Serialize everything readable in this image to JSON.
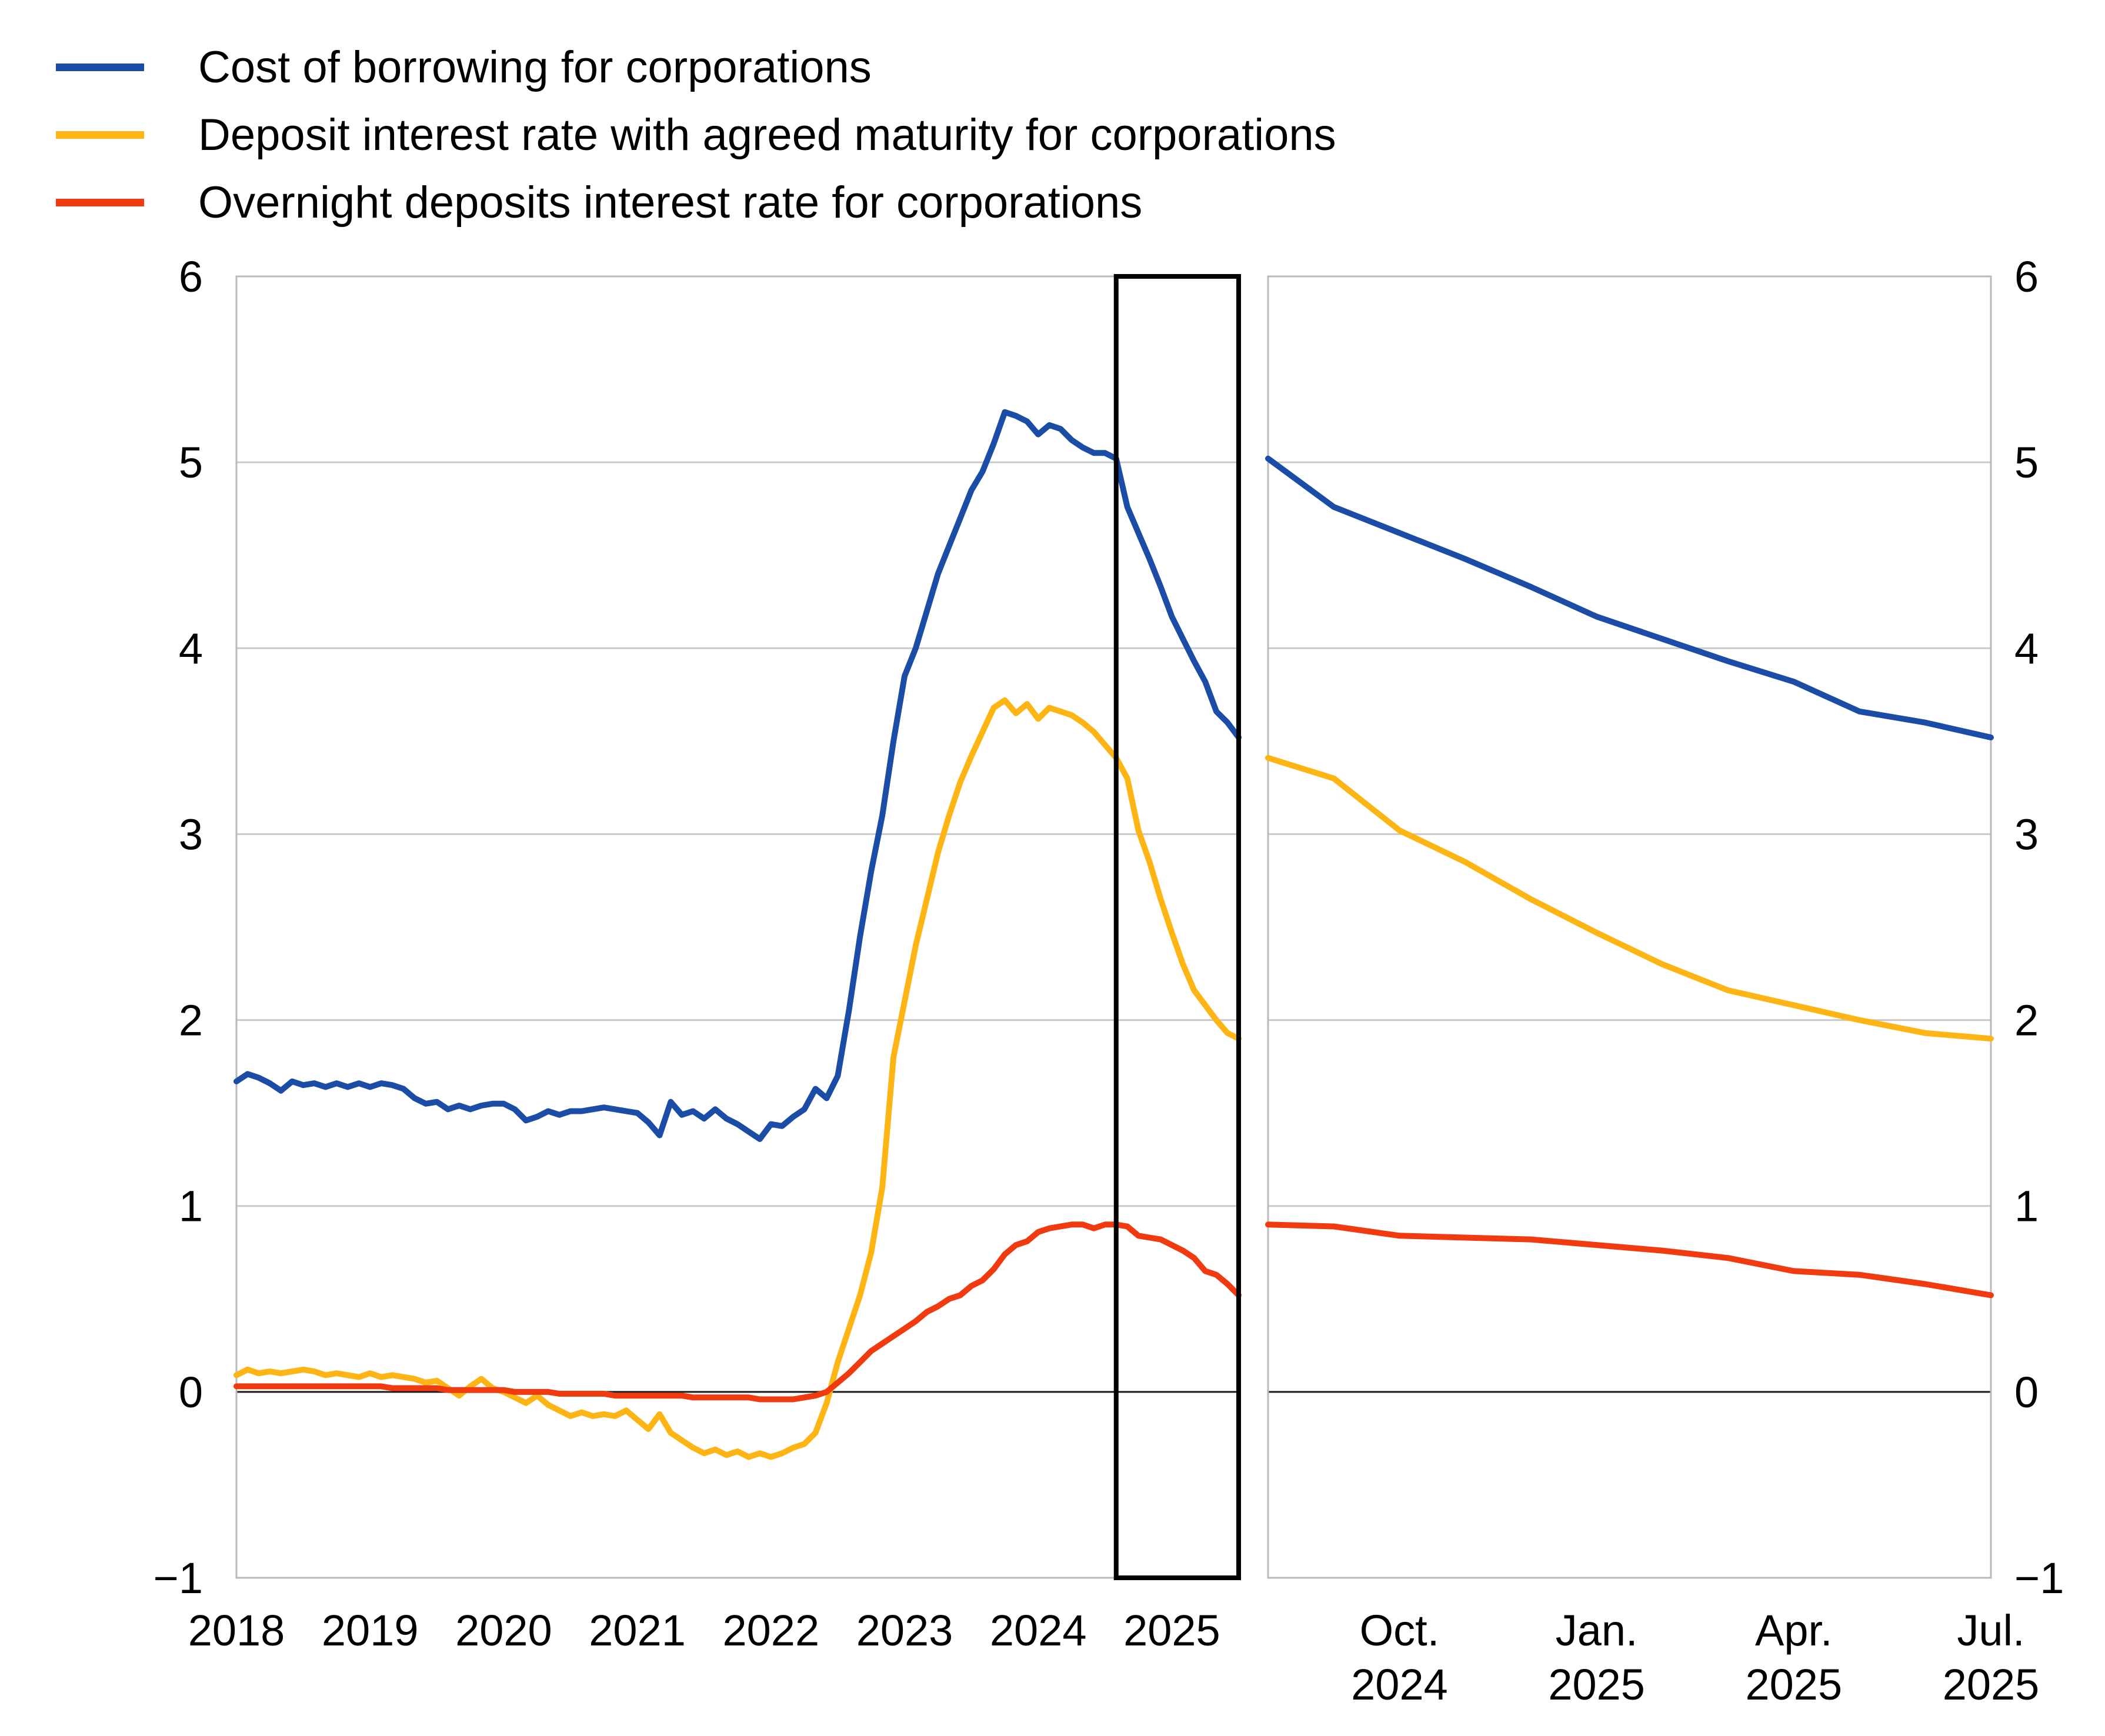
{
  "legend": {
    "items": [
      {
        "id": "cost-of-borrowing",
        "label": "Cost of borrowing for corporations",
        "color": "#1b4da6"
      },
      {
        "id": "deposit-agreed-maturity",
        "label": "Deposit interest rate with agreed maturity for corporations",
        "color": "#fdb515"
      },
      {
        "id": "overnight-deposits",
        "label": "Overnight deposits interest rate for corporations",
        "color": "#f03b10"
      }
    ]
  },
  "chart_data": {
    "type": "line",
    "title": "",
    "legend_position": "top-left",
    "y_axis": {
      "min": -1,
      "max": 6,
      "ticks": [
        "6",
        "5",
        "4",
        "3",
        "2",
        "1",
        "0",
        "−1"
      ],
      "tick_values": [
        6,
        5,
        4,
        3,
        2,
        1,
        0,
        -1
      ],
      "grid": true,
      "zero_line": true
    },
    "style": {
      "grid_color": "#c9c9c9",
      "frame_color": "#b9b9b9",
      "zero_line_color": "#1a1a1a",
      "highlight_color": "#000000",
      "background": "#ffffff",
      "line_width": 10
    },
    "panels": [
      {
        "id": "left",
        "time_range": "Jan 2018 - Jul 2025, monthly",
        "y_labels_side": "left",
        "x_ticks": [
          {
            "index": 0,
            "label": "2018"
          },
          {
            "index": 12,
            "label": "2019"
          },
          {
            "index": 24,
            "label": "2020"
          },
          {
            "index": 36,
            "label": "2021"
          },
          {
            "index": 48,
            "label": "2022"
          },
          {
            "index": 60,
            "label": "2023"
          },
          {
            "index": 72,
            "label": "2024"
          },
          {
            "index": 84,
            "label": "2025"
          }
        ],
        "highlight_box": {
          "from_index": 79,
          "to_index": 90
        },
        "series": [
          {
            "name": "Cost of borrowing for corporations",
            "color": "#1b4da6",
            "values": [
              1.67,
              1.71,
              1.69,
              1.66,
              1.62,
              1.67,
              1.65,
              1.66,
              1.64,
              1.66,
              1.64,
              1.66,
              1.64,
              1.66,
              1.65,
              1.63,
              1.58,
              1.55,
              1.56,
              1.52,
              1.54,
              1.52,
              1.54,
              1.55,
              1.55,
              1.52,
              1.46,
              1.48,
              1.51,
              1.49,
              1.51,
              1.51,
              1.52,
              1.53,
              1.52,
              1.51,
              1.5,
              1.45,
              1.38,
              1.56,
              1.49,
              1.51,
              1.47,
              1.52,
              1.47,
              1.44,
              1.4,
              1.36,
              1.44,
              1.43,
              1.48,
              1.52,
              1.63,
              1.58,
              1.7,
              2.05,
              2.45,
              2.8,
              3.1,
              3.5,
              3.85,
              4.0,
              4.2,
              4.4,
              4.55,
              4.7,
              4.85,
              4.95,
              5.1,
              5.27,
              5.25,
              5.22,
              5.15,
              5.2,
              5.18,
              5.12,
              5.08,
              5.05,
              5.05,
              5.02,
              4.76,
              4.62,
              4.48,
              4.33,
              4.17,
              4.05,
              3.93,
              3.82,
              3.66,
              3.6,
              3.52
            ]
          },
          {
            "name": "Deposit interest rate with agreed maturity for corporations",
            "color": "#fdb515",
            "values": [
              0.09,
              0.12,
              0.1,
              0.11,
              0.1,
              0.11,
              0.12,
              0.11,
              0.09,
              0.1,
              0.09,
              0.08,
              0.1,
              0.08,
              0.09,
              0.08,
              0.07,
              0.05,
              0.06,
              0.02,
              -0.02,
              0.03,
              0.07,
              0.02,
              0.0,
              -0.03,
              -0.06,
              -0.02,
              -0.07,
              -0.1,
              -0.13,
              -0.11,
              -0.13,
              -0.12,
              -0.13,
              -0.1,
              -0.15,
              -0.2,
              -0.12,
              -0.22,
              -0.26,
              -0.3,
              -0.33,
              -0.31,
              -0.34,
              -0.32,
              -0.35,
              -0.33,
              -0.35,
              -0.33,
              -0.3,
              -0.28,
              -0.22,
              -0.06,
              0.16,
              0.34,
              0.52,
              0.75,
              1.1,
              1.8,
              2.1,
              2.4,
              2.65,
              2.9,
              3.1,
              3.28,
              3.42,
              3.55,
              3.68,
              3.72,
              3.65,
              3.7,
              3.62,
              3.68,
              3.66,
              3.64,
              3.6,
              3.55,
              3.48,
              3.41,
              3.3,
              3.02,
              2.85,
              2.65,
              2.47,
              2.3,
              2.16,
              2.08,
              2.0,
              1.93,
              1.9
            ]
          },
          {
            "name": "Overnight deposits interest rate for corporations",
            "color": "#f03b10",
            "values": [
              0.03,
              0.03,
              0.03,
              0.03,
              0.03,
              0.03,
              0.03,
              0.03,
              0.03,
              0.03,
              0.03,
              0.03,
              0.03,
              0.03,
              0.02,
              0.02,
              0.02,
              0.02,
              0.02,
              0.01,
              0.01,
              0.01,
              0.01,
              0.01,
              0.01,
              0.0,
              0.0,
              0.0,
              0.0,
              -0.01,
              -0.01,
              -0.01,
              -0.01,
              -0.01,
              -0.02,
              -0.02,
              -0.02,
              -0.02,
              -0.02,
              -0.02,
              -0.02,
              -0.03,
              -0.03,
              -0.03,
              -0.03,
              -0.03,
              -0.03,
              -0.04,
              -0.04,
              -0.04,
              -0.04,
              -0.03,
              -0.02,
              0.0,
              0.05,
              0.1,
              0.16,
              0.22,
              0.26,
              0.3,
              0.34,
              0.38,
              0.43,
              0.46,
              0.5,
              0.52,
              0.57,
              0.6,
              0.66,
              0.74,
              0.79,
              0.81,
              0.86,
              0.88,
              0.89,
              0.9,
              0.9,
              0.88,
              0.9,
              0.9,
              0.89,
              0.84,
              0.83,
              0.82,
              0.79,
              0.76,
              0.72,
              0.65,
              0.63,
              0.58,
              0.52
            ]
          }
        ]
      },
      {
        "id": "right",
        "time_range": "Aug 2024 - Jul 2025, monthly",
        "y_labels_side": "right",
        "x_ticks": [
          {
            "index": 2,
            "label": [
              "Oct.",
              "2024"
            ]
          },
          {
            "index": 5,
            "label": [
              "Jan.",
              "2025"
            ]
          },
          {
            "index": 8,
            "label": [
              "Apr.",
              "2025"
            ]
          },
          {
            "index": 11,
            "label": [
              "Jul.",
              "2025"
            ]
          }
        ],
        "series": [
          {
            "name": "Cost of borrowing for corporations",
            "color": "#1b4da6",
            "values": [
              5.02,
              4.76,
              4.62,
              4.48,
              4.33,
              4.17,
              4.05,
              3.93,
              3.82,
              3.66,
              3.6,
              3.52
            ]
          },
          {
            "name": "Deposit interest rate with agreed maturity for corporations",
            "color": "#fdb515",
            "values": [
              3.41,
              3.3,
              3.02,
              2.85,
              2.65,
              2.47,
              2.3,
              2.16,
              2.08,
              2.0,
              1.93,
              1.9
            ]
          },
          {
            "name": "Overnight deposits interest rate for corporations",
            "color": "#f03b10",
            "values": [
              0.9,
              0.89,
              0.84,
              0.83,
              0.82,
              0.79,
              0.76,
              0.72,
              0.65,
              0.63,
              0.58,
              0.52
            ]
          }
        ]
      }
    ]
  }
}
